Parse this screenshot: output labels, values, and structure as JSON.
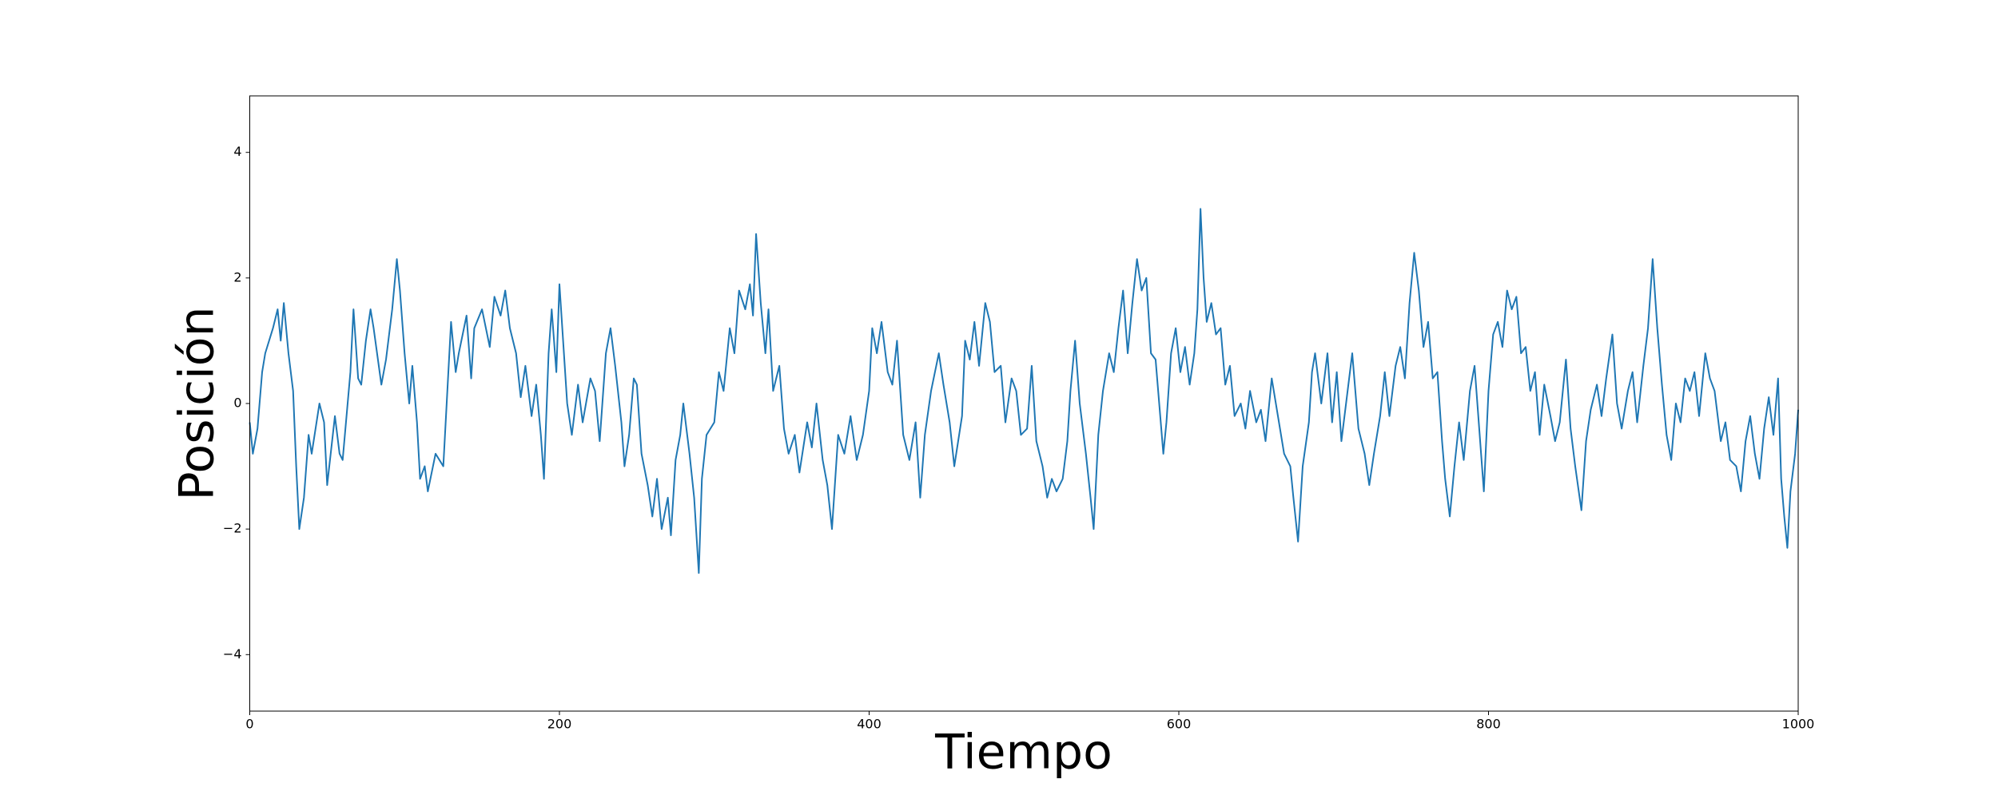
{
  "chart_data": {
    "type": "line",
    "xlabel": "Tiempo",
    "ylabel": "Posición",
    "xlim": [
      0,
      1000
    ],
    "ylim": [
      -4.9,
      4.9
    ],
    "xticks": [
      0,
      200,
      400,
      600,
      800,
      1000
    ],
    "yticks": [
      {
        "value": -4,
        "label": "−4"
      },
      {
        "value": -2,
        "label": "−2"
      },
      0,
      2,
      4
    ],
    "grid": false,
    "series": [
      {
        "color": "#1f77b4",
        "x": [
          0,
          2,
          5,
          8,
          10,
          15,
          18,
          20,
          22,
          25,
          28,
          30,
          32,
          35,
          38,
          40,
          45,
          48,
          50,
          55,
          58,
          60,
          65,
          67,
          70,
          72,
          75,
          78,
          80,
          85,
          88,
          92,
          95,
          97,
          100,
          103,
          105,
          108,
          110,
          113,
          115,
          120,
          125,
          130,
          133,
          135,
          140,
          143,
          145,
          150,
          155,
          158,
          162,
          165,
          168,
          172,
          175,
          178,
          182,
          185,
          188,
          190,
          193,
          195,
          198,
          200,
          205,
          208,
          212,
          215,
          220,
          223,
          226,
          230,
          233,
          236,
          240,
          242,
          245,
          248,
          250,
          253,
          257,
          260,
          263,
          266,
          270,
          272,
          275,
          278,
          280,
          284,
          287,
          290,
          292,
          295,
          300,
          303,
          306,
          310,
          313,
          316,
          320,
          323,
          325,
          327,
          330,
          333,
          335,
          338,
          342,
          345,
          348,
          352,
          355,
          360,
          363,
          366,
          370,
          373,
          376,
          380,
          384,
          388,
          392,
          396,
          400,
          402,
          405,
          408,
          412,
          415,
          418,
          422,
          426,
          430,
          433,
          436,
          440,
          445,
          448,
          452,
          455,
          460,
          462,
          465,
          468,
          471,
          475,
          478,
          481,
          485,
          488,
          492,
          495,
          498,
          502,
          505,
          508,
          512,
          515,
          518,
          521,
          525,
          528,
          530,
          533,
          536,
          540,
          543,
          545,
          548,
          551,
          555,
          558,
          561,
          564,
          567,
          570,
          573,
          576,
          579,
          582,
          585,
          588,
          590,
          592,
          595,
          598,
          601,
          604,
          607,
          610,
          612,
          614,
          616,
          618,
          621,
          624,
          627,
          630,
          633,
          636,
          640,
          643,
          646,
          650,
          653,
          656,
          660,
          664,
          668,
          672,
          674,
          677,
          680,
          684,
          686,
          688,
          692,
          696,
          699,
          702,
          705,
          708,
          712,
          716,
          720,
          723,
          726,
          730,
          733,
          736,
          740,
          743,
          746,
          749,
          752,
          755,
          758,
          761,
          764,
          767,
          770,
          772,
          775,
          778,
          781,
          784,
          788,
          791,
          794,
          797,
          800,
          803,
          806,
          809,
          812,
          815,
          818,
          821,
          824,
          827,
          830,
          833,
          836,
          840,
          843,
          846,
          850,
          853,
          856,
          860,
          863,
          866,
          870,
          873,
          876,
          880,
          883,
          886,
          890,
          893,
          896,
          900,
          903,
          906,
          909,
          912,
          915,
          918,
          921,
          924,
          927,
          930,
          933,
          936,
          940,
          943,
          946,
          950,
          953,
          956,
          960,
          963,
          966,
          969,
          972,
          975,
          978,
          981,
          984,
          987,
          989,
          991,
          993,
          995,
          998,
          1000
        ],
        "values": [
          -0.3,
          -0.8,
          -0.4,
          0.5,
          0.8,
          1.2,
          1.5,
          1.0,
          1.6,
          0.8,
          0.2,
          -1.0,
          -2.0,
          -1.5,
          -0.5,
          -0.8,
          0.0,
          -0.3,
          -1.3,
          -0.2,
          -0.8,
          -0.9,
          0.5,
          1.5,
          0.4,
          0.3,
          1.0,
          1.5,
          1.2,
          0.3,
          0.7,
          1.5,
          2.3,
          1.8,
          0.8,
          0.0,
          0.6,
          -0.3,
          -1.2,
          -1.0,
          -1.4,
          -0.8,
          -1.0,
          1.3,
          0.5,
          0.8,
          1.4,
          0.4,
          1.2,
          1.5,
          0.9,
          1.7,
          1.4,
          1.8,
          1.2,
          0.8,
          0.1,
          0.6,
          -0.2,
          0.3,
          -0.5,
          -1.2,
          0.8,
          1.5,
          0.5,
          1.9,
          0.0,
          -0.5,
          0.3,
          -0.3,
          0.4,
          0.2,
          -0.6,
          0.8,
          1.2,
          0.6,
          -0.3,
          -1.0,
          -0.5,
          0.4,
          0.3,
          -0.8,
          -1.3,
          -1.8,
          -1.2,
          -2.0,
          -1.5,
          -2.1,
          -0.9,
          -0.5,
          0.0,
          -0.8,
          -1.5,
          -2.7,
          -1.2,
          -0.5,
          -0.3,
          0.5,
          0.2,
          1.2,
          0.8,
          1.8,
          1.5,
          1.9,
          1.4,
          2.7,
          1.6,
          0.8,
          1.5,
          0.2,
          0.6,
          -0.4,
          -0.8,
          -0.5,
          -1.1,
          -0.3,
          -0.7,
          0.0,
          -0.9,
          -1.3,
          -2.0,
          -0.5,
          -0.8,
          -0.2,
          -0.9,
          -0.5,
          0.2,
          1.2,
          0.8,
          1.3,
          0.5,
          0.3,
          1.0,
          -0.5,
          -0.9,
          -0.3,
          -1.5,
          -0.5,
          0.2,
          0.8,
          0.3,
          -0.3,
          -1.0,
          -0.2,
          1.0,
          0.7,
          1.3,
          0.6,
          1.6,
          1.3,
          0.5,
          0.6,
          -0.3,
          0.4,
          0.2,
          -0.5,
          -0.4,
          0.6,
          -0.6,
          -1.0,
          -1.5,
          -1.2,
          -1.4,
          -1.2,
          -0.6,
          0.2,
          1.0,
          0.0,
          -0.8,
          -1.5,
          -2.0,
          -0.5,
          0.2,
          0.8,
          0.5,
          1.2,
          1.8,
          0.8,
          1.6,
          2.3,
          1.8,
          2.0,
          0.8,
          0.7,
          -0.2,
          -0.8,
          -0.3,
          0.8,
          1.2,
          0.5,
          0.9,
          0.3,
          0.8,
          1.5,
          3.1,
          2.0,
          1.3,
          1.6,
          1.1,
          1.2,
          0.3,
          0.6,
          -0.2,
          0.0,
          -0.4,
          0.2,
          -0.3,
          -0.1,
          -0.6,
          0.4,
          -0.2,
          -0.8,
          -1.0,
          -1.5,
          -2.2,
          -1.0,
          -0.3,
          0.5,
          0.8,
          0.0,
          0.8,
          -0.3,
          0.5,
          -0.6,
          0.0,
          0.8,
          -0.4,
          -0.8,
          -1.3,
          -0.8,
          -0.2,
          0.5,
          -0.2,
          0.6,
          0.9,
          0.4,
          1.6,
          2.4,
          1.8,
          0.9,
          1.3,
          0.4,
          0.5,
          -0.6,
          -1.2,
          -1.8,
          -1.0,
          -0.3,
          -0.9,
          0.2,
          0.6,
          -0.4,
          -1.4,
          0.2,
          1.1,
          1.3,
          0.9,
          1.8,
          1.5,
          1.7,
          0.8,
          0.9,
          0.2,
          0.5,
          -0.5,
          0.3,
          -0.2,
          -0.6,
          -0.3,
          0.7,
          -0.4,
          -1.0,
          -1.7,
          -0.6,
          -0.1,
          0.3,
          -0.2,
          0.4,
          1.1,
          0.0,
          -0.4,
          0.2,
          0.5,
          -0.3,
          0.6,
          1.2,
          2.3,
          1.2,
          0.3,
          -0.5,
          -0.9,
          0.0,
          -0.3,
          0.4,
          0.2,
          0.5,
          -0.2,
          0.8,
          0.4,
          0.2,
          -0.6,
          -0.3,
          -0.9,
          -1.0,
          -1.4,
          -0.6,
          -0.2,
          -0.8,
          -1.2,
          -0.4,
          0.1,
          -0.5,
          0.4,
          -1.2,
          -1.8,
          -2.3,
          -1.4,
          -0.8,
          -0.1
        ]
      }
    ]
  }
}
